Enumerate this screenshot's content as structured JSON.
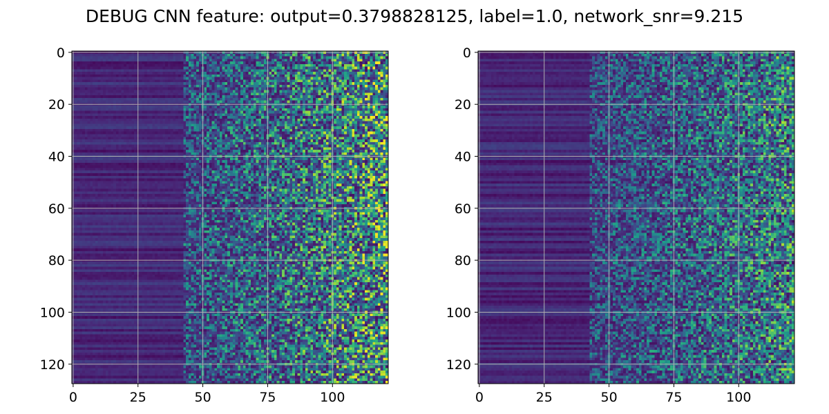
{
  "title": "DEBUG CNN feature: output=0.3798828125, label=1.0, network_snr=9.215",
  "chart_data": [
    {
      "type": "heatmap",
      "colormap": "viridis",
      "n_rows": 128,
      "n_cols": 122,
      "xlim": [
        -0.5,
        121.5
      ],
      "ylim": [
        127.5,
        -0.5
      ],
      "x_ticks": [
        0,
        25,
        50,
        75,
        100
      ],
      "y_ticks": [
        0,
        20,
        40,
        60,
        80,
        100,
        120
      ],
      "x_tick_labels": [
        "0",
        "25",
        "50",
        "75",
        "100"
      ],
      "y_tick_labels": [
        "0",
        "20",
        "40",
        "60",
        "80",
        "100",
        "120"
      ],
      "grid": true,
      "xlabel": "",
      "ylabel": ""
    },
    {
      "type": "heatmap",
      "colormap": "viridis",
      "n_rows": 128,
      "n_cols": 122,
      "xlim": [
        -0.5,
        121.5
      ],
      "ylim": [
        127.5,
        -0.5
      ],
      "x_ticks": [
        0,
        25,
        50,
        75,
        100
      ],
      "y_ticks": [
        0,
        20,
        40,
        60,
        80,
        100,
        120
      ],
      "x_tick_labels": [
        "0",
        "25",
        "50",
        "75",
        "100"
      ],
      "y_tick_labels": [
        "0",
        "20",
        "40",
        "60",
        "80",
        "100",
        "120"
      ],
      "grid": true,
      "xlabel": "",
      "ylabel": ""
    }
  ]
}
